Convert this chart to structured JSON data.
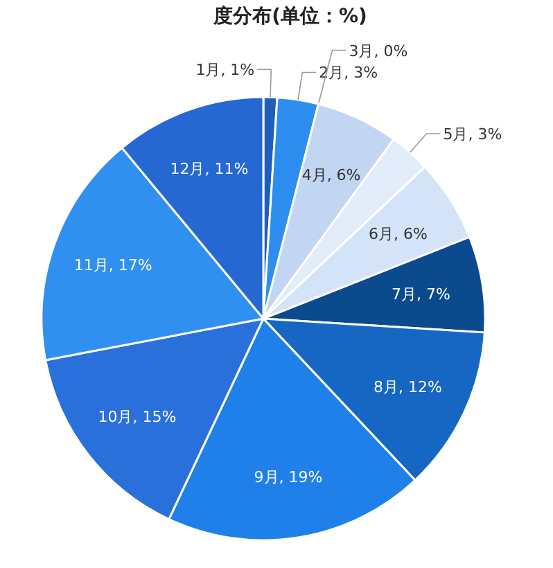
{
  "chart_data": {
    "type": "pie",
    "title": "度分布(单位：%)",
    "categories": [
      "1月",
      "2月",
      "3月",
      "4月",
      "5月",
      "6月",
      "7月",
      "8月",
      "9月",
      "10月",
      "11月",
      "12月"
    ],
    "values": [
      1,
      3,
      0,
      6,
      3,
      6,
      7,
      12,
      19,
      15,
      17,
      11
    ],
    "colors": [
      "#1f5fb8",
      "#2e8ef0",
      "#2e8ef0",
      "#c2d6f4",
      "#e2ecfa",
      "#d4e3f7",
      "#0c4a8e",
      "#1666c4",
      "#1f80ea",
      "#2a70da",
      "#3090f0",
      "#2668d2"
    ],
    "value_labels": [
      ", 1%",
      ", 3%",
      ", 0%",
      ", 6%",
      ", 3%",
      ", 6%",
      ", 7%",
      ", 12%",
      ", 19%",
      ", 15%",
      ", 17%",
      ", 11%"
    ],
    "legend": false
  }
}
